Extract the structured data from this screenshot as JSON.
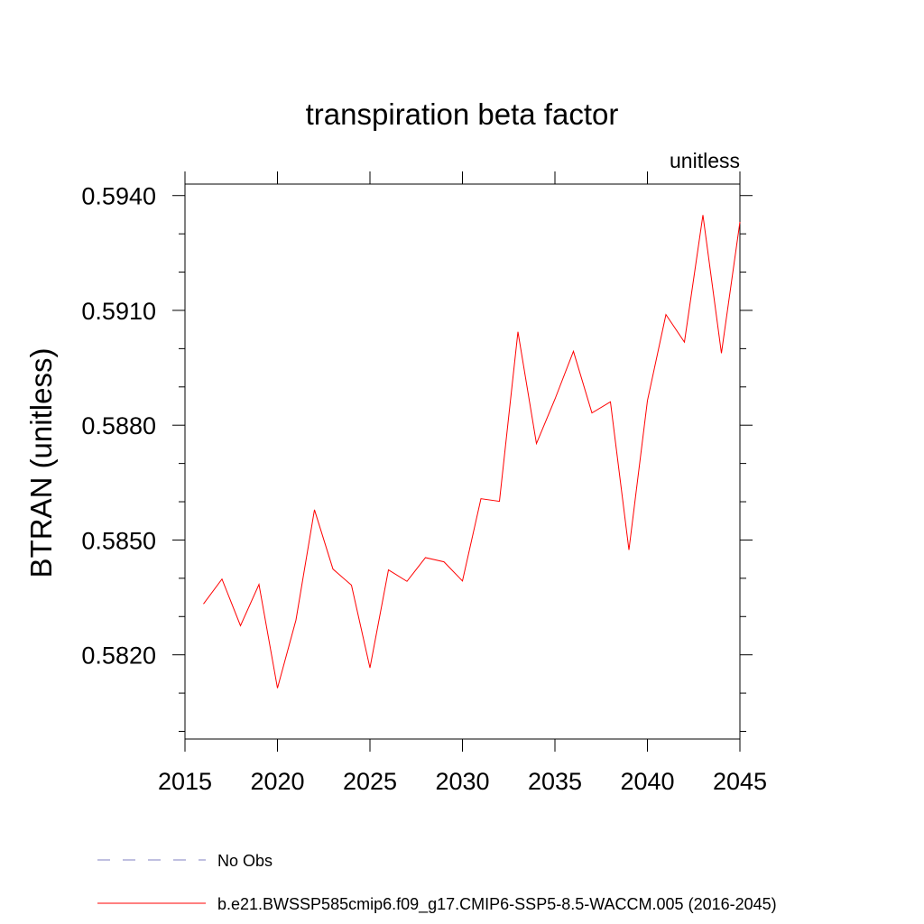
{
  "chart_data": {
    "type": "line",
    "title": "transpiration beta factor",
    "units_label": "unitless",
    "ylabel": "BTRAN  (unitless)",
    "xlabel": "",
    "xlim": [
      2015,
      2045
    ],
    "ylim": [
      0.5798,
      0.5943
    ],
    "x_major_ticks": [
      2015,
      2020,
      2025,
      2030,
      2035,
      2040,
      2045
    ],
    "x_tick_labels": [
      "2015",
      "2020",
      "2025",
      "2030",
      "2035",
      "2040",
      "2045"
    ],
    "y_major_ticks": [
      0.582,
      0.585,
      0.588,
      0.591,
      0.594
    ],
    "y_tick_labels": [
      "0.5820",
      "0.5850",
      "0.5880",
      "0.5910",
      "0.5940"
    ],
    "y_minor_step": 0.001,
    "grid": false,
    "series": [
      {
        "name": "b.e21.BWSSP585cmip6.f09_g17.CMIP6-SSP5-8.5-WACCM.005 (2016-2045)",
        "color": "#ff0000",
        "x": [
          2016,
          2017,
          2018,
          2019,
          2020,
          2021,
          2022,
          2023,
          2024,
          2025,
          2026,
          2027,
          2028,
          2029,
          2030,
          2031,
          2032,
          2033,
          2034,
          2035,
          2036,
          2037,
          2038,
          2039,
          2040,
          2041,
          2042,
          2043,
          2044,
          2045
        ],
        "values": [
          0.58333,
          0.58398,
          0.58276,
          0.58384,
          0.58113,
          0.58291,
          0.58579,
          0.58424,
          0.58382,
          0.58166,
          0.58422,
          0.58392,
          0.58454,
          0.58443,
          0.58393,
          0.58608,
          0.58601,
          0.59044,
          0.58752,
          0.58868,
          0.58993,
          0.58832,
          0.58861,
          0.58474,
          0.58864,
          0.59089,
          0.59017,
          0.59349,
          0.58988,
          0.59331
        ]
      }
    ],
    "legend": [
      {
        "label": "No Obs",
        "style": "dashed",
        "color": "#8080c0"
      },
      {
        "label": "b.e21.BWSSP585cmip6.f09_g17.CMIP6-SSP5-8.5-WACCM.005 (2016-2045)",
        "style": "solid",
        "color": "#ff0000"
      }
    ],
    "legend_position": "bottom-left"
  }
}
